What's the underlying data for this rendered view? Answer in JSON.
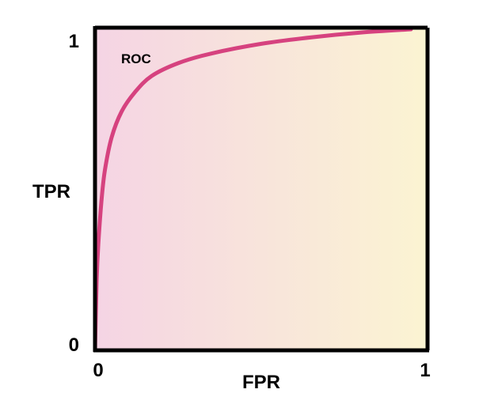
{
  "chart_data": {
    "type": "line",
    "xlabel": "FPR",
    "ylabel": "TPR",
    "xlim": [
      0,
      1
    ],
    "ylim": [
      0,
      1
    ],
    "x_ticks": [
      "0",
      "1"
    ],
    "y_ticks": [
      "0",
      "1"
    ],
    "grid": false,
    "series": [
      {
        "name": "ROC",
        "color": "#d6427f",
        "x": [
          0,
          0.005,
          0.01,
          0.02,
          0.03,
          0.05,
          0.08,
          0.12,
          0.17,
          0.25,
          0.35,
          0.5,
          0.65,
          0.8,
          0.95
        ],
        "y": [
          0,
          0.22,
          0.33,
          0.47,
          0.56,
          0.66,
          0.74,
          0.8,
          0.85,
          0.89,
          0.92,
          0.95,
          0.97,
          0.985,
          0.995
        ]
      }
    ],
    "background_gradient": [
      "#f5d4e4",
      "#fbf4d2"
    ],
    "frame_color": "#000000"
  }
}
